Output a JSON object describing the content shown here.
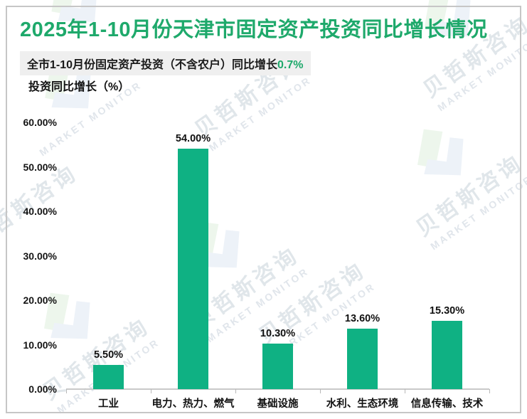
{
  "page": {
    "title": "2025年1-10月份天津市固定资产投资同比增长情况",
    "subtitle_prefix": "全市1-10月份固定资产投资（不含农户）同比增长",
    "subtitle_highlight": "0.7%",
    "axis_title": "投资同比增长（%）"
  },
  "colors": {
    "title_green": "#1ea96b",
    "accent_green": "#1ea96b",
    "bar_green": "#0fb183",
    "subtitle_bg": "#efefef",
    "axis_line": "#c9c9c9",
    "frame_border": "#c6c6c6"
  },
  "watermark": {
    "brand_cn": "贝哲斯咨询",
    "brand_en": "MARKET MONITOR"
  },
  "chart_data": {
    "type": "bar",
    "title": "2025年1-10月份天津市固定资产投资同比增长情况",
    "subtitle": "全市1-10月份固定资产投资（不含农户）同比增长0.7%",
    "xlabel": "",
    "ylabel": "投资同比增长（%）",
    "categories": [
      "工业",
      "电力、热力、燃气",
      "基础设施",
      "水利、生态环境",
      "信息传输、技术"
    ],
    "values": [
      5.5,
      54.0,
      10.3,
      13.6,
      15.3
    ],
    "value_labels": [
      "5.50%",
      "54.00%",
      "10.30%",
      "13.60%",
      "15.30%"
    ],
    "ylim": [
      0,
      60
    ],
    "ytick_step": 10,
    "ytick_labels": [
      "0.00%",
      "10.00%",
      "20.00%",
      "30.00%",
      "40.00%",
      "50.00%",
      "60.00%"
    ],
    "grid": false,
    "legend": null,
    "bar_color": "#0fb183"
  }
}
